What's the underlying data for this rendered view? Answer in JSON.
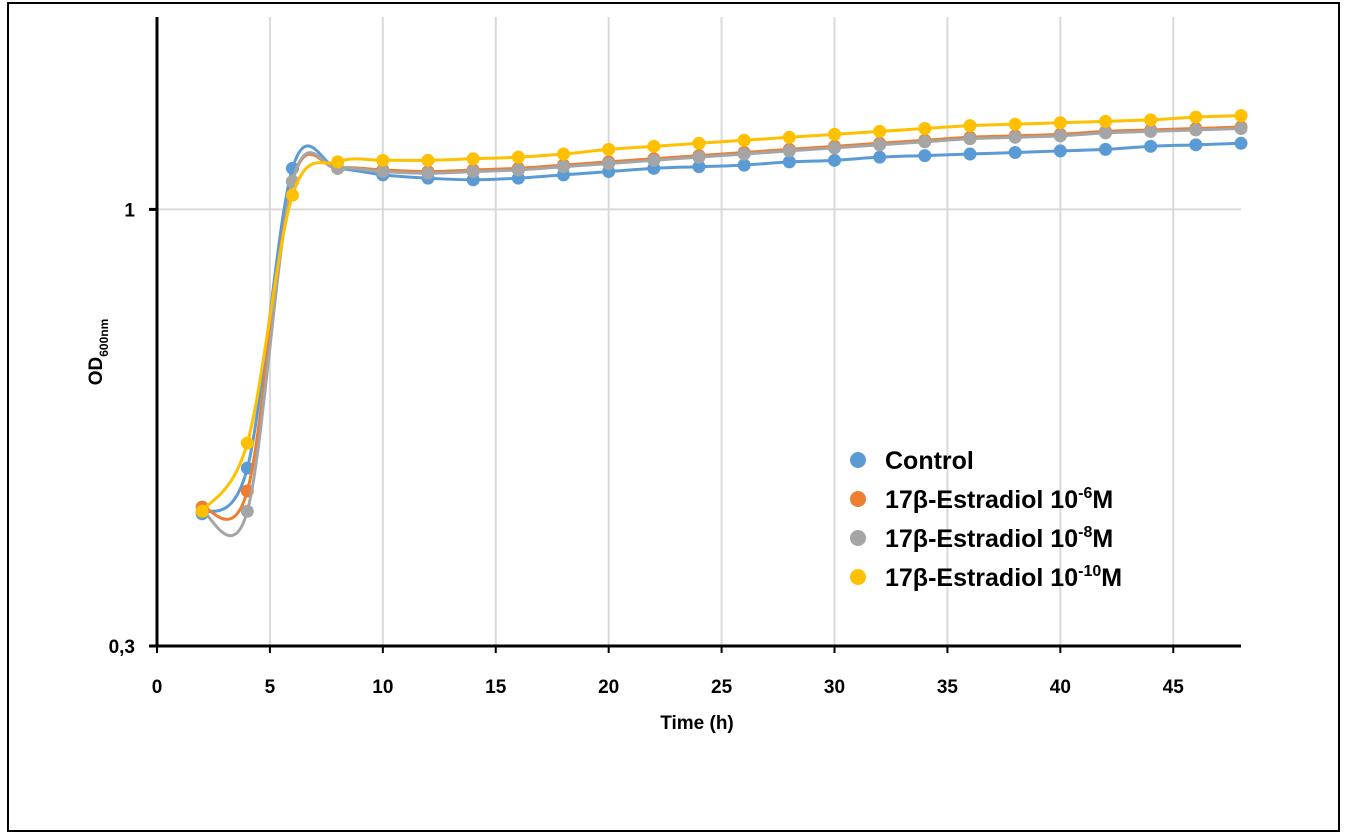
{
  "chart_data": {
    "type": "line",
    "title": "",
    "xlabel": "Time (h)",
    "ylabel": {
      "main": "OD",
      "subscript": "600nm"
    },
    "xlim": [
      0,
      48
    ],
    "ylim": [
      0.3,
      1.7
    ],
    "yscale": "log",
    "x_ticks": [
      0,
      5,
      10,
      15,
      20,
      25,
      30,
      35,
      40,
      45
    ],
    "x_tick_labels": [
      "0",
      "5",
      "10",
      "15",
      "20",
      "25",
      "30",
      "35",
      "40",
      "45"
    ],
    "y_ticks": [
      0.3,
      1
    ],
    "y_tick_labels": [
      "0,3",
      "1"
    ],
    "grid": {
      "vertical": true,
      "horizontal": true
    },
    "legend_position": "center-right",
    "x": [
      2,
      4,
      6,
      8,
      10,
      12,
      14,
      16,
      18,
      20,
      22,
      24,
      26,
      28,
      30,
      32,
      34,
      36,
      38,
      40,
      42,
      44,
      46,
      48
    ],
    "series": [
      {
        "name": "Control",
        "label_parts": {
          "base": "Control",
          "sup": "",
          "unit": ""
        },
        "color": "#5B9BD5",
        "values": [
          0.432,
          0.49,
          1.12,
          1.12,
          1.1,
          1.09,
          1.085,
          1.09,
          1.1,
          1.11,
          1.12,
          1.125,
          1.13,
          1.14,
          1.145,
          1.155,
          1.16,
          1.165,
          1.17,
          1.175,
          1.18,
          1.19,
          1.195,
          1.2
        ]
      },
      {
        "name": "17β-Estradiol 10-6M",
        "label_parts": {
          "base": "17β-Estradiol 10",
          "sup": "-6",
          "unit": "M"
        },
        "color": "#ED7D31",
        "values": [
          0.44,
          0.46,
          1.08,
          1.12,
          1.115,
          1.11,
          1.115,
          1.12,
          1.13,
          1.14,
          1.15,
          1.16,
          1.17,
          1.18,
          1.19,
          1.2,
          1.21,
          1.22,
          1.225,
          1.23,
          1.24,
          1.245,
          1.25,
          1.255
        ]
      },
      {
        "name": "17β-Estradiol 10-8M",
        "label_parts": {
          "base": "17β-Estradiol 10",
          "sup": "-8",
          "unit": "M"
        },
        "color": "#A5A5A5",
        "values": [
          0.435,
          0.435,
          1.08,
          1.12,
          1.11,
          1.105,
          1.11,
          1.115,
          1.125,
          1.135,
          1.145,
          1.155,
          1.165,
          1.175,
          1.185,
          1.195,
          1.205,
          1.215,
          1.22,
          1.225,
          1.235,
          1.24,
          1.245,
          1.25
        ]
      },
      {
        "name": "17β-Estradiol 10-10M",
        "label_parts": {
          "base": "17β-Estradiol 10",
          "sup": "-10",
          "unit": "M"
        },
        "color": "#FFC000",
        "values": [
          0.435,
          0.525,
          1.04,
          1.14,
          1.145,
          1.145,
          1.15,
          1.155,
          1.165,
          1.18,
          1.19,
          1.2,
          1.21,
          1.22,
          1.23,
          1.24,
          1.25,
          1.26,
          1.265,
          1.27,
          1.275,
          1.28,
          1.29,
          1.295
        ]
      }
    ]
  }
}
